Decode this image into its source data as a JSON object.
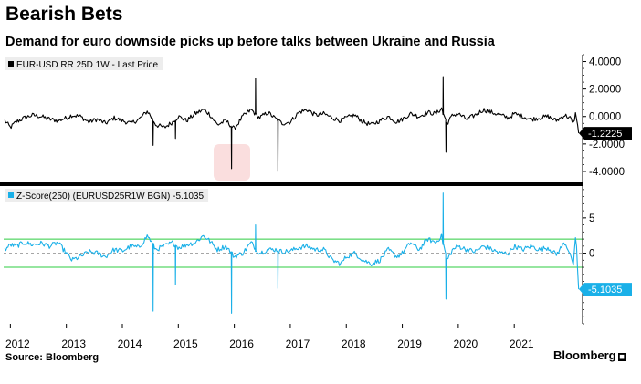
{
  "title": "Bearish Bets",
  "subtitle": "Demand for euro downside picks up before talks between Ukraine and Russia",
  "source": "Source: Bloomberg",
  "brand": "Bloomberg",
  "chart_data": [
    {
      "type": "line",
      "name": "top-panel",
      "legend": "EUR-USD RR 25D 1W - Last Price",
      "color": "#000000",
      "last_value_label": "-1.2225",
      "last_value": -1.2225,
      "ylim": [
        -4.8,
        4.5
      ],
      "yticks": [
        4,
        2,
        0,
        -2,
        -4
      ],
      "ytick_labels": [
        "4.0000",
        "2.0000",
        "0.0000",
        "-2.0000",
        "-4.0000"
      ],
      "xlim": [
        2011.88,
        2022.22
      ],
      "x": [
        2011.9,
        2012.0,
        2012.1,
        2012.25,
        2012.4,
        2012.55,
        2012.7,
        2012.85,
        2013.0,
        2013.1,
        2013.25,
        2013.4,
        2013.55,
        2013.7,
        2013.85,
        2014.0,
        2014.15,
        2014.3,
        2014.45,
        2014.6,
        2014.75,
        2014.9,
        2015.0,
        2015.15,
        2015.3,
        2015.45,
        2015.55,
        2015.7,
        2015.85,
        2016.0,
        2016.15,
        2016.3,
        2016.45,
        2016.6,
        2016.75,
        2016.85,
        2017.0,
        2017.15,
        2017.3,
        2017.45,
        2017.6,
        2017.75,
        2017.9,
        2018.0,
        2018.15,
        2018.3,
        2018.45,
        2018.6,
        2018.75,
        2018.9,
        2019.0,
        2019.15,
        2019.3,
        2019.45,
        2019.6,
        2019.7,
        2019.8,
        2019.9,
        2020.0,
        2020.15,
        2020.3,
        2020.45,
        2020.6,
        2020.75,
        2020.9,
        2021.0,
        2021.15,
        2021.3,
        2021.45,
        2021.6,
        2021.75,
        2021.9,
        2022.0,
        2022.05,
        2022.1,
        2022.15
      ],
      "values": [
        -0.3,
        -0.8,
        -0.4,
        -0.1,
        0.1,
        0.0,
        -0.2,
        -0.3,
        -0.1,
        0.1,
        0.0,
        -0.4,
        -0.2,
        -0.5,
        -0.1,
        -0.3,
        -0.5,
        -0.2,
        0.4,
        -0.6,
        -0.8,
        -0.4,
        0.0,
        -0.3,
        0.2,
        0.5,
        0.2,
        -0.6,
        -0.3,
        -0.9,
        0.0,
        0.5,
        -0.1,
        0.3,
        -0.2,
        -0.5,
        -0.4,
        0.3,
        0.5,
        0.1,
        0.2,
        -0.1,
        -0.3,
        -0.1,
        0.1,
        -0.4,
        -0.6,
        -0.3,
        0.0,
        -0.4,
        -0.2,
        0.2,
        0.0,
        0.3,
        0.2,
        0.6,
        -0.5,
        0.1,
        0.2,
        -0.2,
        0.1,
        0.5,
        0.3,
        0.1,
        -0.1,
        0.2,
        0.0,
        -0.2,
        -0.1,
        0.0,
        -0.3,
        0.1,
        -0.1,
        -0.6,
        0.3,
        -1.2225
      ],
      "spikes": [
        {
          "x": 2014.55,
          "value": -2.1
        },
        {
          "x": 2014.95,
          "value": -1.6
        },
        {
          "x": 2015.95,
          "value": -3.8
        },
        {
          "x": 2016.38,
          "value": 2.8
        },
        {
          "x": 2016.78,
          "value": -4.0
        },
        {
          "x": 2019.73,
          "value": 2.9
        },
        {
          "x": 2019.78,
          "value": -2.6
        }
      ]
    },
    {
      "type": "line",
      "name": "bottom-panel",
      "legend": "Z-Score(250) (EURUSD25R1W BGN) -5.1035",
      "color": "#1ab0e8",
      "last_value_label": "-5.1035",
      "last_value": -5.1035,
      "ylim": [
        -10,
        9.5
      ],
      "yticks": [
        5,
        0,
        -5
      ],
      "ytick_labels": [
        "5",
        "0",
        "-5"
      ],
      "reference_lines": [
        {
          "value": 2,
          "color": "#2ecc40"
        },
        {
          "value": 0,
          "color": "#999999",
          "dashed": true
        },
        {
          "value": -2,
          "color": "#2ecc40"
        }
      ],
      "xlim": [
        2011.88,
        2022.22
      ],
      "x": [
        2011.9,
        2012.0,
        2012.1,
        2012.25,
        2012.4,
        2012.55,
        2012.7,
        2012.85,
        2013.0,
        2013.1,
        2013.25,
        2013.4,
        2013.55,
        2013.7,
        2013.85,
        2014.0,
        2014.15,
        2014.3,
        2014.45,
        2014.6,
        2014.75,
        2014.9,
        2015.0,
        2015.15,
        2015.3,
        2015.45,
        2015.55,
        2015.7,
        2015.85,
        2016.0,
        2016.15,
        2016.3,
        2016.45,
        2016.6,
        2016.75,
        2016.85,
        2017.0,
        2017.15,
        2017.3,
        2017.45,
        2017.6,
        2017.75,
        2017.9,
        2018.0,
        2018.15,
        2018.3,
        2018.45,
        2018.6,
        2018.75,
        2018.9,
        2019.0,
        2019.15,
        2019.3,
        2019.45,
        2019.6,
        2019.7,
        2019.8,
        2019.9,
        2020.0,
        2020.15,
        2020.3,
        2020.45,
        2020.6,
        2020.75,
        2020.9,
        2021.0,
        2021.15,
        2021.3,
        2021.45,
        2021.6,
        2021.75,
        2021.9,
        2022.0,
        2022.05,
        2022.1,
        2022.15
      ],
      "values": [
        0.5,
        1.2,
        1.0,
        1.5,
        1.2,
        1.4,
        1.0,
        1.5,
        0.0,
        -1.0,
        -0.5,
        0.2,
        0.0,
        -0.5,
        0.5,
        0.3,
        1.0,
        0.8,
        2.5,
        0.5,
        1.0,
        1.5,
        0.8,
        1.2,
        1.5,
        2.5,
        1.8,
        0.5,
        1.0,
        -0.5,
        0.0,
        1.5,
        0.0,
        0.5,
        0.5,
        0.2,
        0.3,
        0.8,
        1.0,
        0.5,
        0.5,
        -1.0,
        -1.5,
        -0.5,
        0.0,
        -1.0,
        -1.5,
        -1.0,
        0.5,
        -0.5,
        0.0,
        1.5,
        0.5,
        2.0,
        1.5,
        2.5,
        -1.0,
        0.5,
        1.0,
        0.5,
        0.2,
        1.0,
        0.5,
        0.0,
        0.0,
        1.0,
        0.5,
        1.0,
        0.5,
        0.8,
        -0.2,
        1.5,
        0.0,
        -2.0,
        2.5,
        -5.1035
      ],
      "spikes": [
        {
          "x": 2014.55,
          "value": -8.2
        },
        {
          "x": 2014.95,
          "value": -4.5
        },
        {
          "x": 2015.95,
          "value": -8.5
        },
        {
          "x": 2016.38,
          "value": 4.0
        },
        {
          "x": 2016.78,
          "value": -5.0
        },
        {
          "x": 2019.73,
          "value": 8.5
        },
        {
          "x": 2019.78,
          "value": -6.5
        }
      ]
    }
  ],
  "x_axis": {
    "years": [
      2012,
      2013,
      2014,
      2015,
      2016,
      2017,
      2018,
      2019,
      2020,
      2021
    ],
    "labels": [
      "2012",
      "2013",
      "2014",
      "2015",
      "2016",
      "2017",
      "2018",
      "2019",
      "2020",
      "2021"
    ]
  },
  "colors": {
    "divider": "#000000",
    "grid": "#dddddd",
    "watermark": "#f2a0a0"
  }
}
